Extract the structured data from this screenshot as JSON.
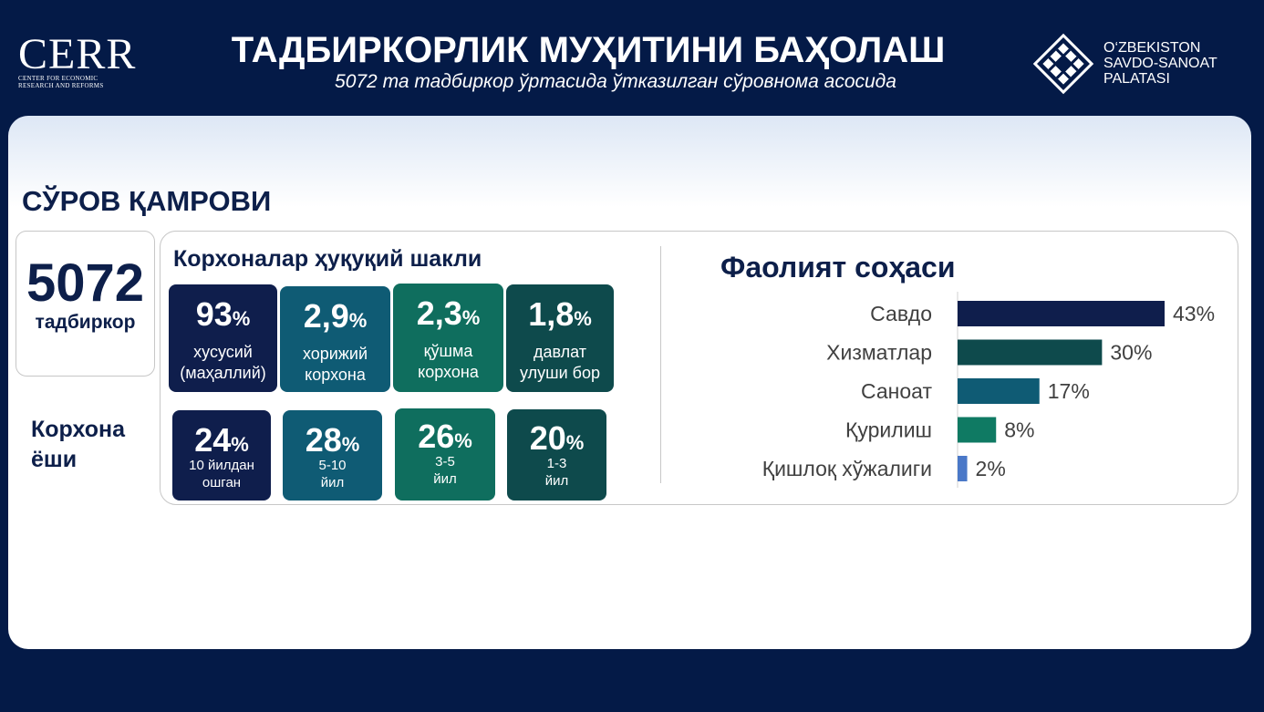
{
  "header": {
    "logo_left_big": "CERR",
    "logo_left_small": "Center for Economic Research and Reforms",
    "title": "ТАДБИРКОРЛИК МУҲИТИНИ БАҲОЛАШ",
    "subtitle": "5072 та тадбиркор ўртасида ўтказилган сўровнома асосида",
    "logo_right_line1": "O‘ZBEKISTON",
    "logo_right_line2": "SAVDO-SANOAT",
    "logo_right_line3": "PALATASI"
  },
  "survey": {
    "section_title": "СЎРОВ ҚАМРОВИ",
    "count": "5072",
    "count_label": "тадбиркор",
    "legal_title": "Корхоналар ҳуқуқий шакли",
    "legal": [
      {
        "value": "93",
        "unit": "%",
        "line1": "хусусий",
        "line2": "(маҳаллий)",
        "color": "#0f1e4c"
      },
      {
        "value": "2,9",
        "unit": "%",
        "line1": "хорижий",
        "line2": "корхона",
        "color": "#0f5b74"
      },
      {
        "value": "2,3",
        "unit": "%",
        "line1": "қўшма",
        "line2": "корхона",
        "color": "#0f6e5e"
      },
      {
        "value": "1,8",
        "unit": "%",
        "line1": "давлат",
        "line2": "улуши бор",
        "color": "#0e4a4c"
      }
    ],
    "age_title_line1": "Корхона",
    "age_title_line2": "ёши",
    "age": [
      {
        "value": "24",
        "unit": "%",
        "line1": "10 йилдан",
        "line2": "ошган",
        "color": "#0f1e4c"
      },
      {
        "value": "28",
        "unit": "%",
        "line1": "5-10",
        "line2": "йил",
        "color": "#0f5b74"
      },
      {
        "value": "26",
        "unit": "%",
        "line1": "3-5",
        "line2": "йил",
        "color": "#0f6e5e"
      },
      {
        "value": "20",
        "unit": "%",
        "line1": "1-3",
        "line2": "йил",
        "color": "#0e4a4c"
      }
    ]
  },
  "activity": {
    "title": "Фаолият соҳаси"
  },
  "chart_data": {
    "type": "bar",
    "orientation": "horizontal",
    "title": "Фаолият соҳаси",
    "categories": [
      "Савдо",
      "Хизматлар",
      "Саноат",
      "Қурилиш",
      "Қишлоқ хўжалиги"
    ],
    "values": [
      43,
      30,
      17,
      8,
      2
    ],
    "value_labels": [
      "43%",
      "30%",
      "17%",
      "8%",
      "2%"
    ],
    "colors": [
      "#0f1e4c",
      "#0e4a4c",
      "#0f5b74",
      "#0f7a63",
      "#4a78c8"
    ],
    "xlim": [
      0,
      50
    ],
    "grid": false,
    "legend": "none"
  }
}
